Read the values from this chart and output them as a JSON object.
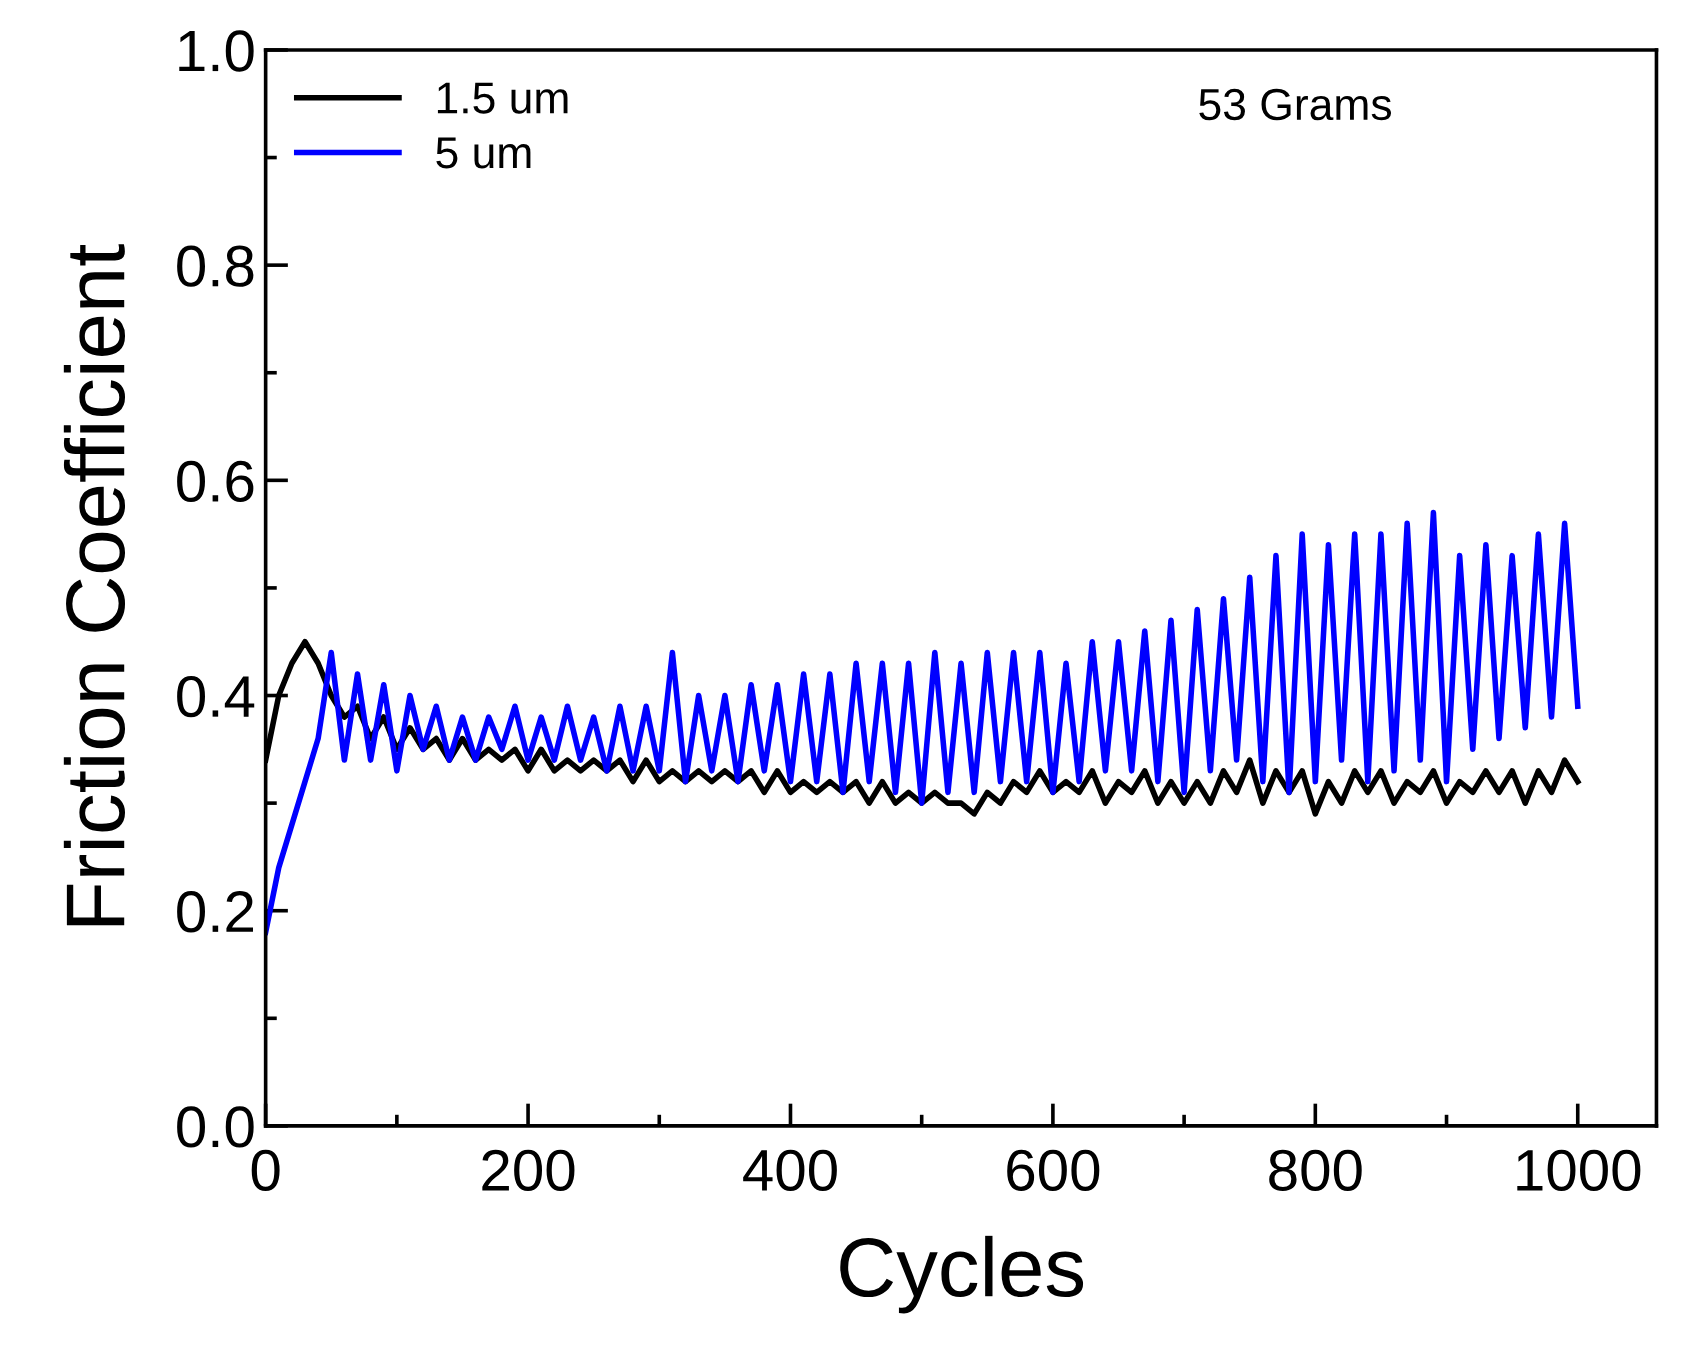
{
  "chart_data": {
    "type": "line",
    "xlabel": "Cycles",
    "ylabel": "Friction Coefficient",
    "annotations": [
      "53 Grams"
    ],
    "xlim": [
      0,
      1060
    ],
    "ylim": [
      0,
      1.0
    ],
    "xticks": [
      0,
      200,
      400,
      600,
      800,
      1000
    ],
    "yticks": [
      {
        "value": 0,
        "label": "0.0"
      },
      {
        "value": 0.2,
        "label": "0.2"
      },
      {
        "value": 0.4,
        "label": "0.4"
      },
      {
        "value": 0.6,
        "label": "0.6"
      },
      {
        "value": 0.8,
        "label": "0.8"
      },
      {
        "value": 1.0,
        "label": "1.0"
      }
    ],
    "legend": "top left",
    "grid": false,
    "marker": "none",
    "line_style": "solid",
    "x": [
      0,
      10,
      20,
      30,
      40,
      50,
      60,
      70,
      80,
      90,
      100,
      110,
      120,
      130,
      140,
      150,
      160,
      170,
      180,
      190,
      200,
      210,
      220,
      230,
      240,
      250,
      260,
      270,
      280,
      290,
      300,
      310,
      320,
      330,
      340,
      350,
      360,
      370,
      380,
      390,
      400,
      410,
      420,
      430,
      440,
      450,
      460,
      470,
      480,
      490,
      500,
      510,
      520,
      530,
      540,
      550,
      560,
      570,
      580,
      590,
      600,
      610,
      620,
      630,
      640,
      650,
      660,
      670,
      680,
      690,
      700,
      710,
      720,
      730,
      740,
      750,
      760,
      770,
      780,
      790,
      800,
      810,
      820,
      830,
      840,
      850,
      860,
      870,
      880,
      890,
      900,
      910,
      920,
      930,
      940,
      950,
      960,
      970,
      980,
      990,
      1000
    ],
    "series": [
      {
        "name": "1.5 um",
        "color": "#000000",
        "values": [
          0.34,
          0.4,
          0.43,
          0.45,
          0.43,
          0.4,
          0.38,
          0.39,
          0.36,
          0.38,
          0.35,
          0.37,
          0.35,
          0.36,
          0.34,
          0.36,
          0.34,
          0.35,
          0.34,
          0.35,
          0.33,
          0.35,
          0.33,
          0.34,
          0.33,
          0.34,
          0.33,
          0.34,
          0.32,
          0.34,
          0.32,
          0.33,
          0.32,
          0.33,
          0.32,
          0.33,
          0.32,
          0.33,
          0.31,
          0.33,
          0.31,
          0.32,
          0.31,
          0.32,
          0.31,
          0.32,
          0.3,
          0.32,
          0.3,
          0.31,
          0.3,
          0.31,
          0.3,
          0.3,
          0.29,
          0.31,
          0.3,
          0.32,
          0.31,
          0.33,
          0.31,
          0.32,
          0.31,
          0.33,
          0.3,
          0.32,
          0.31,
          0.33,
          0.3,
          0.32,
          0.3,
          0.32,
          0.3,
          0.33,
          0.31,
          0.34,
          0.3,
          0.33,
          0.31,
          0.33,
          0.29,
          0.32,
          0.3,
          0.33,
          0.31,
          0.33,
          0.3,
          0.32,
          0.31,
          0.33,
          0.3,
          0.32,
          0.31,
          0.33,
          0.31,
          0.33,
          0.3,
          0.33,
          0.31,
          0.34,
          0.32
        ]
      },
      {
        "name": "5 um",
        "color": "#0000ff",
        "values": [
          0.18,
          0.24,
          0.28,
          0.32,
          0.36,
          0.44,
          0.34,
          0.42,
          0.34,
          0.41,
          0.33,
          0.4,
          0.35,
          0.39,
          0.34,
          0.38,
          0.34,
          0.38,
          0.35,
          0.39,
          0.34,
          0.38,
          0.34,
          0.39,
          0.34,
          0.38,
          0.33,
          0.39,
          0.33,
          0.39,
          0.33,
          0.44,
          0.32,
          0.4,
          0.33,
          0.4,
          0.32,
          0.41,
          0.33,
          0.41,
          0.32,
          0.42,
          0.32,
          0.42,
          0.31,
          0.43,
          0.32,
          0.43,
          0.31,
          0.43,
          0.3,
          0.44,
          0.31,
          0.43,
          0.31,
          0.44,
          0.32,
          0.44,
          0.32,
          0.44,
          0.31,
          0.43,
          0.32,
          0.45,
          0.33,
          0.45,
          0.33,
          0.46,
          0.32,
          0.47,
          0.31,
          0.48,
          0.33,
          0.49,
          0.34,
          0.51,
          0.32,
          0.53,
          0.31,
          0.55,
          0.32,
          0.54,
          0.34,
          0.55,
          0.32,
          0.55,
          0.33,
          0.56,
          0.34,
          0.57,
          0.32,
          0.53,
          0.35,
          0.54,
          0.36,
          0.53,
          0.37,
          0.55,
          0.38,
          0.56,
          0.39
        ]
      }
    ]
  }
}
